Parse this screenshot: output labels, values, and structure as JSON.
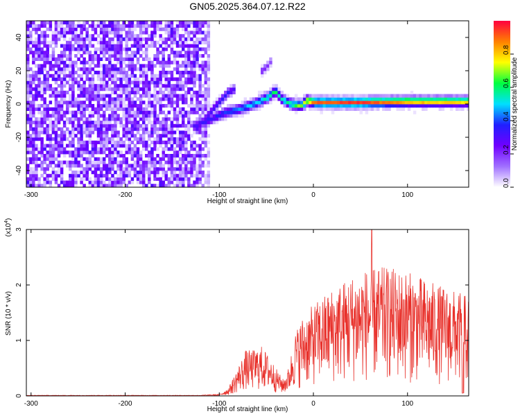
{
  "title": "GN05.2025.364.07.12.R22",
  "chart_data": [
    {
      "type": "heatmap",
      "xlabel": "Height of straight line (km)",
      "ylabel": "Frequency (Hz)",
      "xlim": [
        -305,
        165
      ],
      "ylim": [
        -50,
        50
      ],
      "xticks": [
        -300,
        -200,
        -100,
        0,
        100
      ],
      "xtick_labels": [
        "-300",
        "-200",
        "-100",
        "0",
        "100"
      ],
      "yticks": [
        -40,
        -20,
        0,
        20,
        40
      ],
      "ytick_labels": [
        "-40",
        "-20",
        "0",
        "20",
        "40"
      ],
      "colorbar": {
        "label": "Normalized spectral amplitude",
        "range": [
          0,
          1
        ],
        "ticks": [
          0,
          0.2,
          0.4,
          0.6,
          0.8
        ],
        "tick_labels": [
          "0.0",
          "0.2",
          "0.4",
          "0.6",
          "0.8"
        ],
        "colormap": [
          "#ffffff",
          "#a070ff",
          "#7000ff",
          "#2020ff",
          "#00e0ff",
          "#00ff40",
          "#ffff00",
          "#ff8000",
          "#ff0040"
        ]
      },
      "noise_region": {
        "x": [
          -305,
          -118
        ],
        "level": 0.15
      },
      "ridge": {
        "points": [
          {
            "x": -128,
            "y": -14,
            "a": 0.3
          },
          {
            "x": -110,
            "y": -10,
            "a": 0.35
          },
          {
            "x": -95,
            "y": -6,
            "a": 0.4
          },
          {
            "x": -80,
            "y": -4,
            "a": 0.45
          },
          {
            "x": -65,
            "y": -1,
            "a": 0.5
          },
          {
            "x": -50,
            "y": 3,
            "a": 0.55
          },
          {
            "x": -42,
            "y": 7,
            "a": 0.6
          },
          {
            "x": -35,
            "y": 2,
            "a": 0.55
          },
          {
            "x": -25,
            "y": -1,
            "a": 0.6
          },
          {
            "x": -15,
            "y": -2,
            "a": 0.7
          },
          {
            "x": -8,
            "y": 1,
            "a": 0.8
          },
          {
            "x": 0,
            "y": 0,
            "a": 0.9
          },
          {
            "x": 45,
            "y": 0,
            "a": 0.95
          },
          {
            "x": 100,
            "y": 0.5,
            "a": 0.85
          },
          {
            "x": 165,
            "y": 0.5,
            "a": 0.8
          }
        ],
        "branch": [
          {
            "x": -120,
            "y": -12,
            "a": 0.3
          },
          {
            "x": -105,
            "y": -2,
            "a": 0.35
          },
          {
            "x": -92,
            "y": 6,
            "a": 0.35
          },
          {
            "x": -85,
            "y": 8,
            "a": 0.3
          }
        ],
        "upper_branch": [
          {
            "x": -58,
            "y": 18,
            "a": 0.25
          },
          {
            "x": -50,
            "y": 22,
            "a": 0.2
          },
          {
            "x": -45,
            "y": 26,
            "a": 0.15
          }
        ]
      }
    },
    {
      "type": "line",
      "xlabel": "Height of straight line (km)",
      "ylabel": "SNR (10 * v/v)",
      "y_multiplier": "(x10",
      "y_multiplier_exp": "4",
      "xlim": [
        -305,
        165
      ],
      "ylim": [
        0,
        3
      ],
      "xticks": [
        -300,
        -200,
        -100,
        0,
        100
      ],
      "xtick_labels": [
        "-300",
        "-200",
        "-100",
        "0",
        "100"
      ],
      "yticks": [
        0,
        1,
        2,
        3
      ],
      "ytick_labels": [
        "0",
        "1",
        "2",
        "3"
      ],
      "color": "#e8302a",
      "envelope": [
        {
          "x": -305,
          "y": 0.01
        },
        {
          "x": -120,
          "y": 0.01
        },
        {
          "x": -100,
          "y": 0.02
        },
        {
          "x": -90,
          "y": 0.1
        },
        {
          "x": -80,
          "y": 0.35
        },
        {
          "x": -72,
          "y": 0.55
        },
        {
          "x": -65,
          "y": 0.55
        },
        {
          "x": -55,
          "y": 0.6
        },
        {
          "x": -45,
          "y": 0.45
        },
        {
          "x": -38,
          "y": 0.3
        },
        {
          "x": -32,
          "y": 0.2
        },
        {
          "x": -26,
          "y": 0.35
        },
        {
          "x": -20,
          "y": 0.75
        },
        {
          "x": -12,
          "y": 0.95
        },
        {
          "x": 0,
          "y": 1.1
        },
        {
          "x": 20,
          "y": 1.3
        },
        {
          "x": 40,
          "y": 1.45
        },
        {
          "x": 60,
          "y": 1.55
        },
        {
          "x": 80,
          "y": 1.55
        },
        {
          "x": 100,
          "y": 1.5
        },
        {
          "x": 130,
          "y": 1.35
        },
        {
          "x": 165,
          "y": 1.2
        }
      ],
      "peak": {
        "x": 62,
        "y": 3.0
      }
    }
  ]
}
